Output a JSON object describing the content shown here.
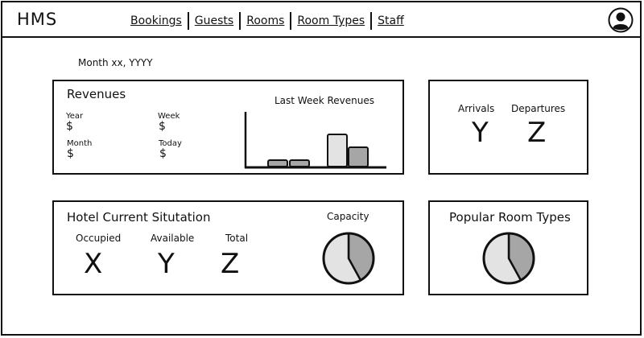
{
  "app": {
    "title": "HMS"
  },
  "nav": {
    "items": [
      {
        "label": "Bookings"
      },
      {
        "label": "Guests"
      },
      {
        "label": "Rooms"
      },
      {
        "label": "Room Types"
      },
      {
        "label": "Staff"
      }
    ]
  },
  "icons": {
    "profile": "user-avatar-icon"
  },
  "header": {
    "date": "Month xx, YYYY"
  },
  "revenues": {
    "title": "Revenues",
    "year_label": "Year",
    "year_value": "$",
    "week_label": "Week",
    "week_value": "$",
    "month_label": "Month",
    "month_value": "$",
    "today_label": "Today",
    "today_value": "$"
  },
  "arrivals": {
    "arrivals_label": "Arrivals",
    "arrivals_value": "Y",
    "departures_label": "Departures",
    "departures_value": "Z"
  },
  "hotel": {
    "title": "Hotel Current Situtation",
    "occupied_label": "Occupied",
    "occupied_value": "X",
    "available_label": "Available",
    "available_value": "Y",
    "total_label": "Total",
    "total_value": "Z",
    "capacity_label": "Capacity"
  },
  "popular": {
    "title": "Popular Room Types"
  },
  "colors": {
    "dark_fill": "#a6a6a6",
    "light_fill": "#e3e3e3",
    "stroke": "#111111"
  },
  "chart_data": [
    {
      "type": "bar",
      "title": "Last Week Revenues",
      "categories": [
        "",
        "",
        "",
        ""
      ],
      "values": [
        1,
        1,
        5,
        3
      ],
      "ylim": [
        0,
        8.5
      ],
      "grid": false
    },
    {
      "type": "pie",
      "title": "Capacity",
      "values": [
        42,
        58
      ]
    },
    {
      "type": "pie",
      "title": "Popular Room Types",
      "values": [
        42,
        58
      ]
    }
  ]
}
